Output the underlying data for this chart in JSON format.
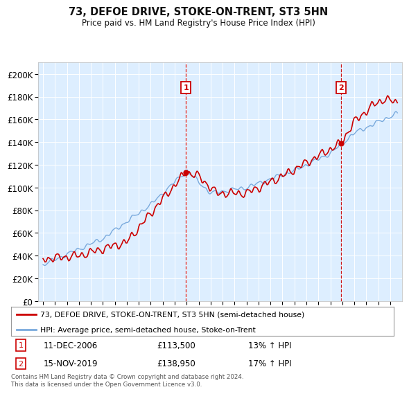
{
  "title": "73, DEFOE DRIVE, STOKE-ON-TRENT, ST3 5HN",
  "subtitle": "Price paid vs. HM Land Registry's House Price Index (HPI)",
  "ylabel_ticks": [
    "£0",
    "£20K",
    "£40K",
    "£60K",
    "£80K",
    "£100K",
    "£120K",
    "£140K",
    "£160K",
    "£180K",
    "£200K"
  ],
  "ytick_values": [
    0,
    20000,
    40000,
    60000,
    80000,
    100000,
    120000,
    140000,
    160000,
    180000,
    200000
  ],
  "ylim": [
    0,
    210000
  ],
  "xlim_start": 1994.6,
  "xlim_end": 2025.0,
  "property_color": "#cc0000",
  "hpi_color": "#7aaadd",
  "marker1_year": 2006.94,
  "marker2_year": 2019.88,
  "marker1_price": 113500,
  "marker2_price": 138950,
  "legend1_text": "73, DEFOE DRIVE, STOKE-ON-TRENT, ST3 5HN (semi-detached house)",
  "legend2_text": "HPI: Average price, semi-detached house, Stoke-on-Trent",
  "annotation1_date": "11-DEC-2006",
  "annotation2_date": "15-NOV-2019",
  "annotation1_price": "£113,500",
  "annotation2_price": "£138,950",
  "annotation1_pct": "13% ↑ HPI",
  "annotation2_pct": "17% ↑ HPI",
  "footnote": "Contains HM Land Registry data © Crown copyright and database right 2024.\nThis data is licensed under the Open Government Licence v3.0.",
  "plot_bg_color": "#ddeeff",
  "fig_bg_color": "#ffffff",
  "grid_color": "#ffffff"
}
